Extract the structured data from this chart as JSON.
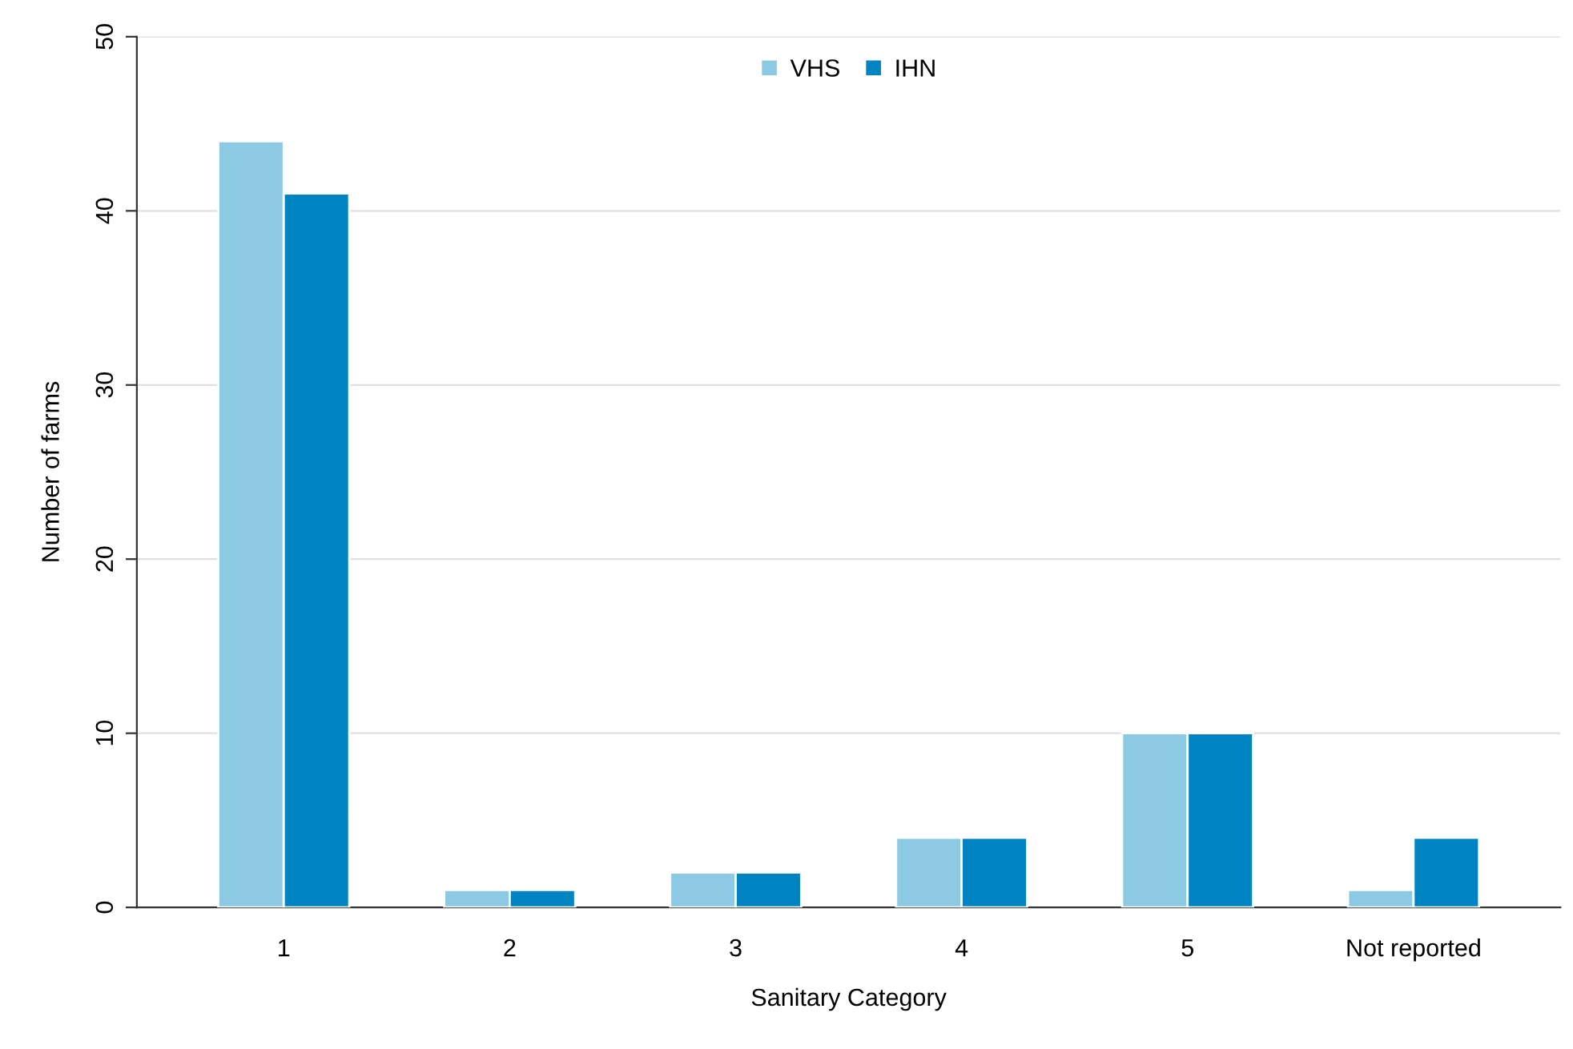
{
  "chart_data": {
    "type": "bar",
    "xlabel": "Sanitary Category",
    "ylabel": "Number of farms",
    "categories": [
      "1",
      "2",
      "3",
      "4",
      "5",
      "Not reported"
    ],
    "series": [
      {
        "name": "VHS",
        "color": "#8ccae3",
        "values": [
          44,
          1,
          2,
          4,
          10,
          1
        ]
      },
      {
        "name": "IHN",
        "color": "#0083c1",
        "values": [
          41,
          1,
          2,
          4,
          10,
          4
        ]
      }
    ],
    "ylim": [
      0,
      50
    ],
    "yticks": [
      0,
      10,
      20,
      30,
      40,
      50
    ],
    "grid": "y",
    "legend": "top"
  }
}
